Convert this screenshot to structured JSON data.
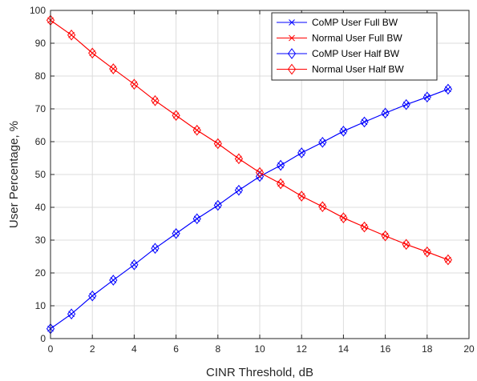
{
  "chart_data": {
    "type": "line",
    "title": "",
    "xlabel": "CINR Threshold, dB",
    "ylabel": "User Percentage, %",
    "xlim": [
      0,
      20
    ],
    "ylim": [
      0,
      100
    ],
    "xticks": [
      0,
      2,
      4,
      6,
      8,
      10,
      12,
      14,
      16,
      18,
      20
    ],
    "yticks": [
      0,
      10,
      20,
      30,
      40,
      50,
      60,
      70,
      80,
      90,
      100
    ],
    "grid": true,
    "legend_position": "top-right",
    "x": [
      0,
      1,
      2,
      3,
      4,
      5,
      6,
      7,
      8,
      9,
      10,
      11,
      12,
      13,
      14,
      15,
      16,
      17,
      18,
      19
    ],
    "series": [
      {
        "name": "CoMP User Full BW",
        "color": "#0000ff",
        "marker": "x",
        "values": [
          3,
          7.5,
          13,
          17.8,
          22.5,
          27.5,
          32,
          36.5,
          40.6,
          45.2,
          49.4,
          52.8,
          56.6,
          59.8,
          63.2,
          66,
          68.7,
          71.3,
          73.6,
          76
        ]
      },
      {
        "name": "Normal User Full BW",
        "color": "#ff0000",
        "marker": "x",
        "values": [
          97,
          92.5,
          87,
          82.2,
          77.5,
          72.5,
          68,
          63.5,
          59.4,
          54.8,
          50.6,
          47.2,
          43.4,
          40.2,
          36.8,
          34,
          31.3,
          28.7,
          26.4,
          24
        ]
      },
      {
        "name": "CoMP User Half BW",
        "color": "#0000ff",
        "marker": "diamond",
        "values": [
          3,
          7.5,
          13,
          17.8,
          22.5,
          27.5,
          32,
          36.5,
          40.6,
          45.2,
          49.4,
          52.8,
          56.6,
          59.8,
          63.2,
          66,
          68.7,
          71.3,
          73.6,
          76
        ]
      },
      {
        "name": "Normal User Half BW",
        "color": "#ff0000",
        "marker": "diamond",
        "values": [
          97,
          92.5,
          87,
          82.2,
          77.5,
          72.5,
          68,
          63.5,
          59.4,
          54.8,
          50.6,
          47.2,
          43.4,
          40.2,
          36.8,
          34,
          31.3,
          28.7,
          26.4,
          24
        ]
      }
    ]
  }
}
